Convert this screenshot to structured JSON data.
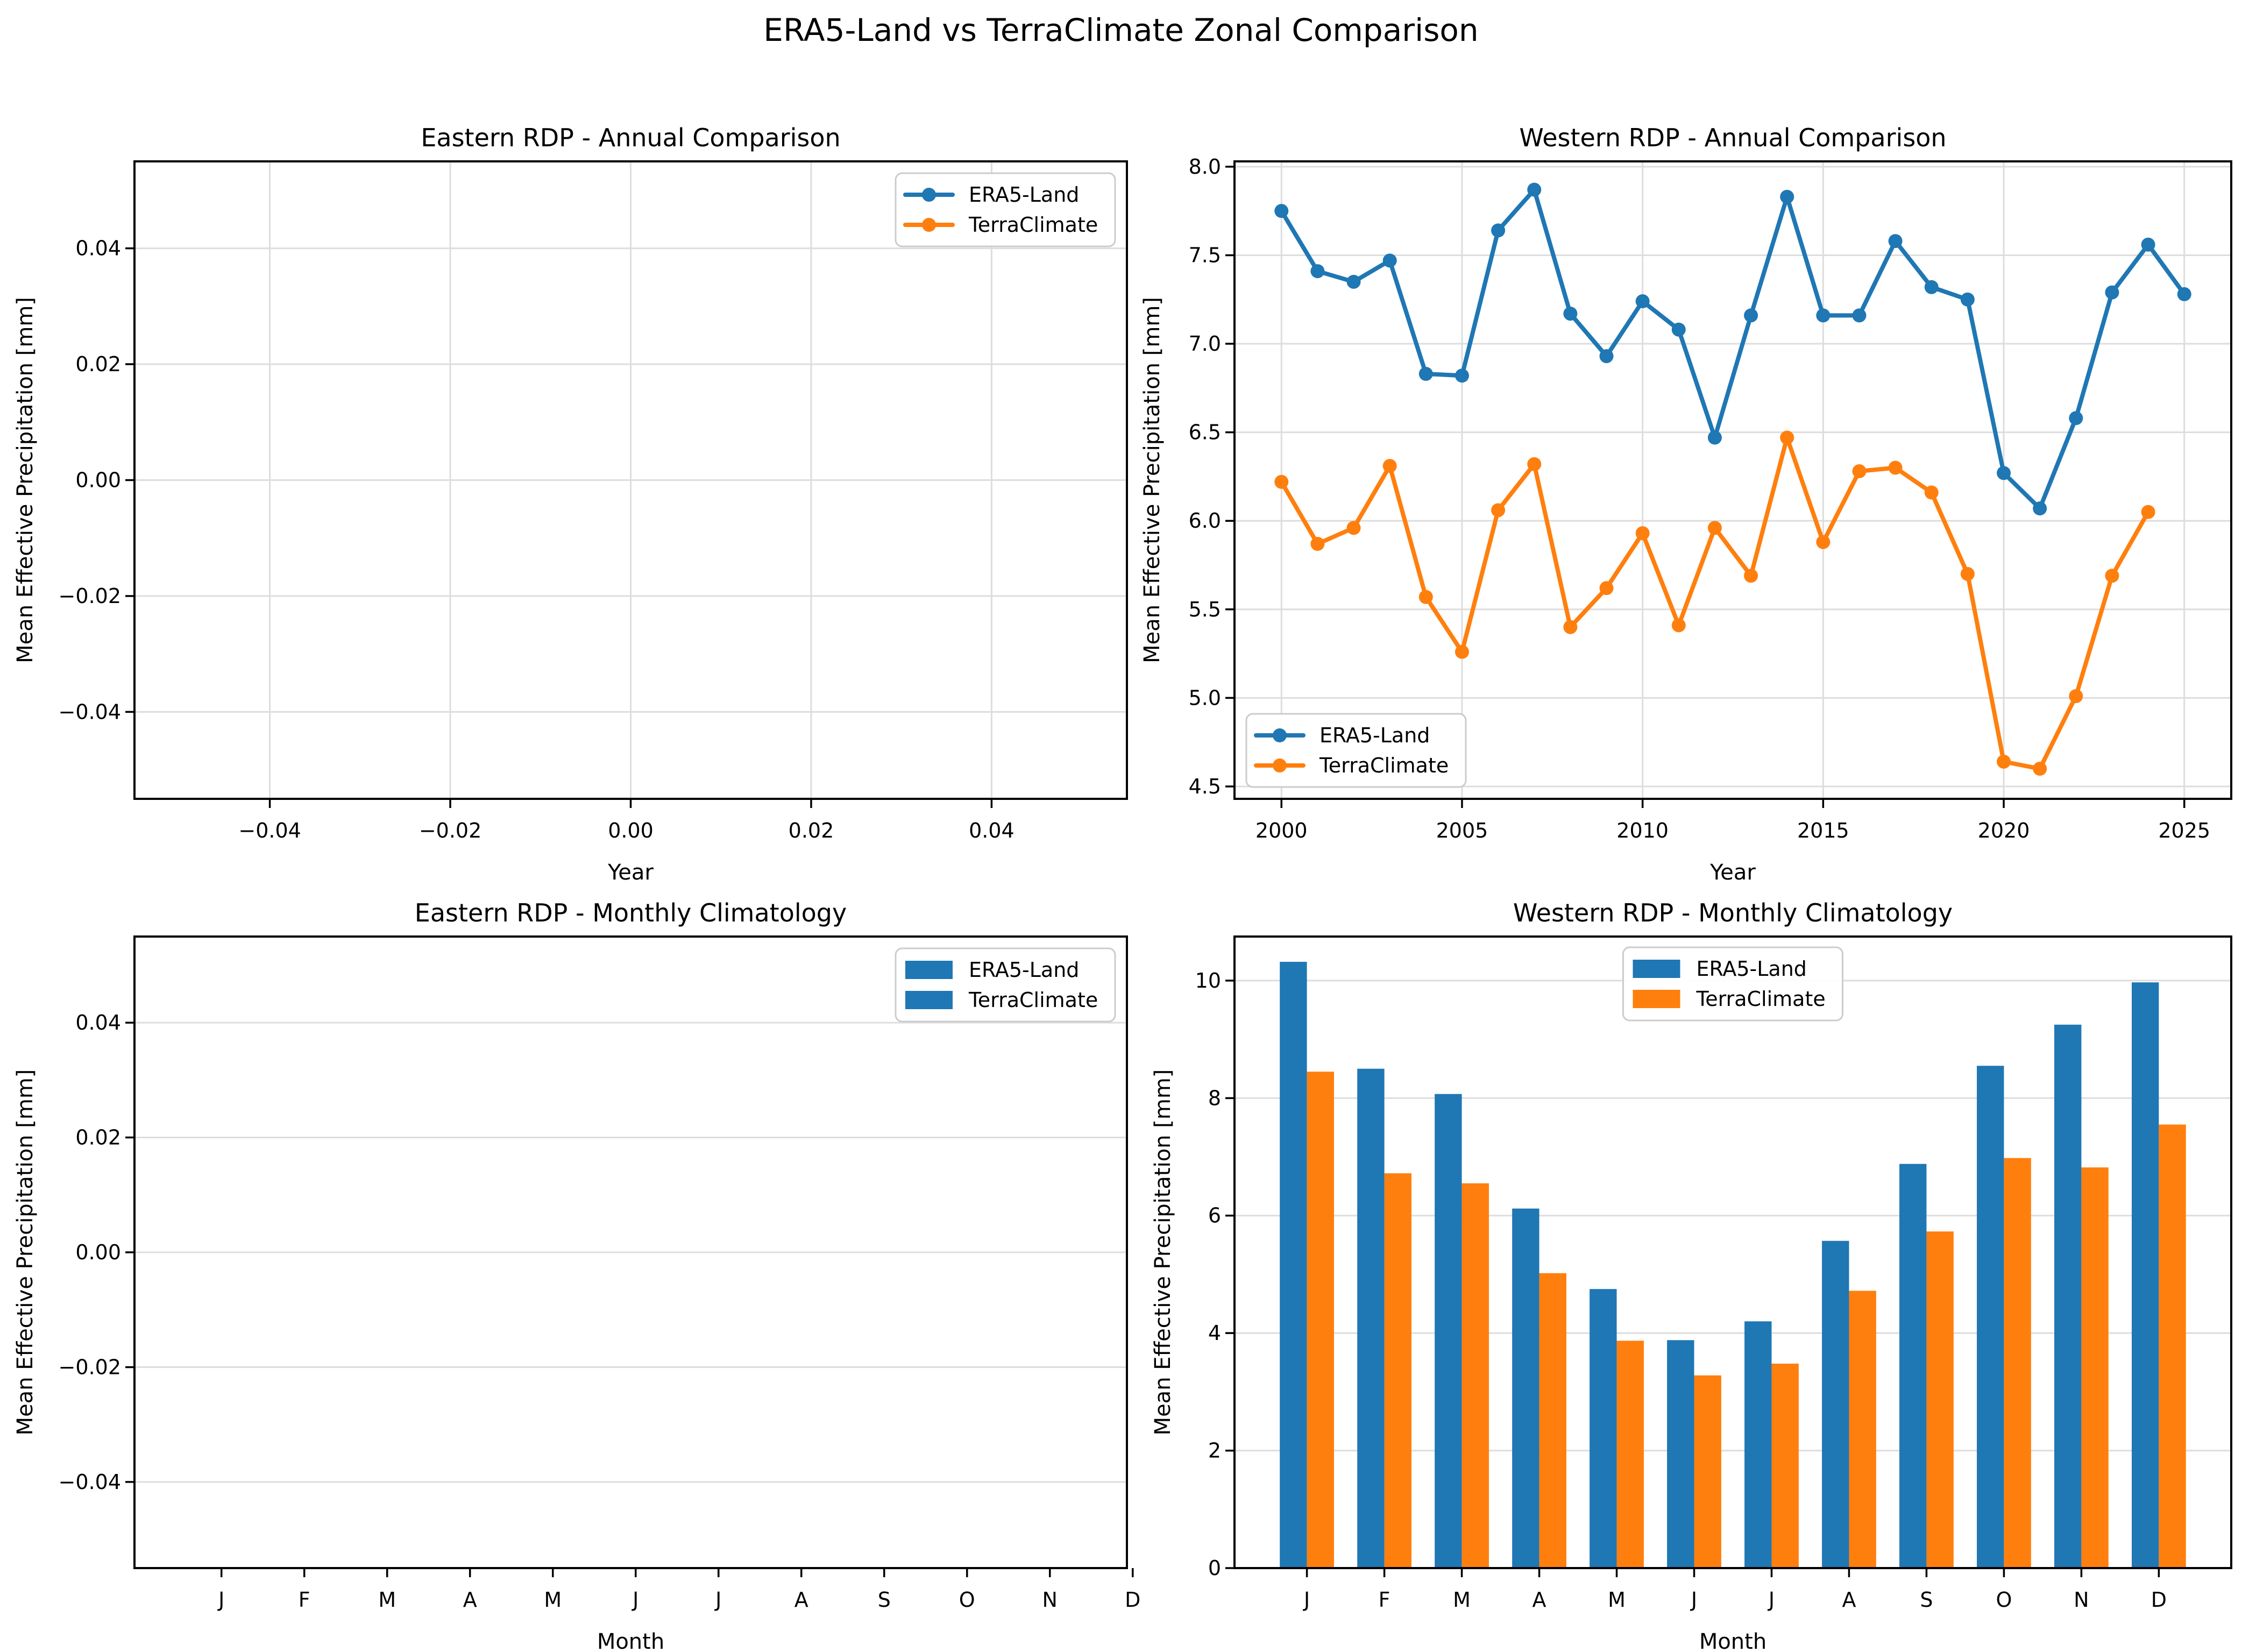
{
  "suptitle": "ERA5-Land vs TerraClimate Zonal Comparison",
  "colors": {
    "era5_land": "#1f77b4",
    "terraclimate": "#ff7f0e",
    "grid": "#dddddd",
    "spine": "#000000",
    "legend_border": "#cccccc"
  },
  "chart_data": [
    {
      "id": "eastern-annual",
      "type": "line",
      "title": "Eastern RDP - Annual Comparison",
      "xlabel": "Year",
      "ylabel": "Mean Effective Precipitation [mm]",
      "xlim": [
        -0.055,
        0.055
      ],
      "ylim": [
        -0.055,
        0.055
      ],
      "xticks": [
        {
          "v": -0.04,
          "label": "−0.04"
        },
        {
          "v": -0.02,
          "label": "−0.02"
        },
        {
          "v": 0.0,
          "label": "0.00"
        },
        {
          "v": 0.02,
          "label": "0.02"
        },
        {
          "v": 0.04,
          "label": "0.04"
        }
      ],
      "yticks": [
        {
          "v": -0.04,
          "label": "−0.04"
        },
        {
          "v": -0.02,
          "label": "−0.02"
        },
        {
          "v": 0.0,
          "label": "0.00"
        },
        {
          "v": 0.02,
          "label": "0.02"
        },
        {
          "v": 0.04,
          "label": "0.04"
        }
      ],
      "grid": {
        "x": true,
        "y": true
      },
      "series": [],
      "legend": {
        "style": "line",
        "loc": "upper-right",
        "entries": [
          {
            "label": "ERA5-Land",
            "color": "#1f77b4"
          },
          {
            "label": "TerraClimate",
            "color": "#ff7f0e"
          }
        ]
      }
    },
    {
      "id": "western-annual",
      "type": "line",
      "title": "Western RDP - Annual Comparison",
      "xlabel": "Year",
      "ylabel": "Mean Effective Precipitation [mm]",
      "xlim": [
        1998.7,
        2026.3
      ],
      "ylim": [
        4.43,
        8.03
      ],
      "xticks": [
        {
          "v": 2000,
          "label": "2000"
        },
        {
          "v": 2005,
          "label": "2005"
        },
        {
          "v": 2010,
          "label": "2010"
        },
        {
          "v": 2015,
          "label": "2015"
        },
        {
          "v": 2020,
          "label": "2020"
        },
        {
          "v": 2025,
          "label": "2025"
        }
      ],
      "yticks": [
        {
          "v": 4.5,
          "label": "4.5"
        },
        {
          "v": 5.0,
          "label": "5.0"
        },
        {
          "v": 5.5,
          "label": "5.5"
        },
        {
          "v": 6.0,
          "label": "6.0"
        },
        {
          "v": 6.5,
          "label": "6.5"
        },
        {
          "v": 7.0,
          "label": "7.0"
        },
        {
          "v": 7.5,
          "label": "7.5"
        },
        {
          "v": 8.0,
          "label": "8.0"
        }
      ],
      "grid": {
        "x": true,
        "y": true
      },
      "series": [
        {
          "name": "ERA5-Land",
          "color": "#1f77b4",
          "x": [
            2000,
            2001,
            2002,
            2003,
            2004,
            2005,
            2006,
            2007,
            2008,
            2009,
            2010,
            2011,
            2012,
            2013,
            2014,
            2015,
            2016,
            2017,
            2018,
            2019,
            2020,
            2021,
            2022,
            2023,
            2024,
            2025
          ],
          "y": [
            7.75,
            7.41,
            7.35,
            7.47,
            6.83,
            6.82,
            7.64,
            7.87,
            7.17,
            6.93,
            7.24,
            7.08,
            6.47,
            7.16,
            7.83,
            7.16,
            7.16,
            7.58,
            7.32,
            7.25,
            6.27,
            6.07,
            6.58,
            7.29,
            7.56,
            7.28
          ]
        },
        {
          "name": "TerraClimate",
          "color": "#ff7f0e",
          "x": [
            2000,
            2001,
            2002,
            2003,
            2004,
            2005,
            2006,
            2007,
            2008,
            2009,
            2010,
            2011,
            2012,
            2013,
            2014,
            2015,
            2016,
            2017,
            2018,
            2019,
            2020,
            2021,
            2022,
            2023,
            2024
          ],
          "y": [
            6.22,
            5.87,
            5.96,
            6.31,
            5.57,
            5.26,
            6.06,
            6.32,
            5.4,
            5.62,
            5.93,
            5.41,
            5.96,
            5.69,
            6.47,
            5.88,
            6.28,
            6.3,
            6.16,
            5.7,
            4.64,
            4.6,
            5.01,
            5.69,
            6.05
          ]
        }
      ],
      "legend": {
        "style": "line",
        "loc": "lower-left",
        "entries": [
          {
            "label": "ERA5-Land",
            "color": "#1f77b4"
          },
          {
            "label": "TerraClimate",
            "color": "#ff7f0e"
          }
        ]
      }
    },
    {
      "id": "eastern-monthly",
      "type": "line",
      "title": "Eastern RDP - Monthly Climatology",
      "xlabel": "Month",
      "ylabel": "Mean Effective Precipitation [mm]",
      "xlim": [
        -1.05,
        10.93
      ],
      "ylim": [
        -0.055,
        0.055
      ],
      "xticks": [
        {
          "v": 0,
          "label": "J"
        },
        {
          "v": 1,
          "label": "F"
        },
        {
          "v": 2,
          "label": "M"
        },
        {
          "v": 3,
          "label": "A"
        },
        {
          "v": 4,
          "label": "M"
        },
        {
          "v": 5,
          "label": "J"
        },
        {
          "v": 6,
          "label": "J"
        },
        {
          "v": 7,
          "label": "A"
        },
        {
          "v": 8,
          "label": "S"
        },
        {
          "v": 9,
          "label": "O"
        },
        {
          "v": 10,
          "label": "N"
        },
        {
          "v": 11,
          "label": "D"
        }
      ],
      "yticks": [
        {
          "v": -0.04,
          "label": "−0.04"
        },
        {
          "v": -0.02,
          "label": "−0.02"
        },
        {
          "v": 0.0,
          "label": "0.00"
        },
        {
          "v": 0.02,
          "label": "0.02"
        },
        {
          "v": 0.04,
          "label": "0.04"
        }
      ],
      "grid": {
        "x": false,
        "y": true
      },
      "series": [],
      "legend": {
        "style": "patch",
        "loc": "upper-right",
        "entries": [
          {
            "label": "ERA5-Land",
            "color": "#1f77b4"
          },
          {
            "label": "TerraClimate",
            "color": "#1f77b4"
          }
        ]
      }
    },
    {
      "id": "western-monthly",
      "type": "bar",
      "title": "Western RDP - Monthly Climatology",
      "xlabel": "Month",
      "ylabel": "Mean Effective Precipitation [mm]",
      "xlim": [
        -0.935,
        11.935
      ],
      "ylim": [
        0,
        10.75
      ],
      "bar_width": 0.35,
      "xticks": [
        {
          "v": 0,
          "label": "J"
        },
        {
          "v": 1,
          "label": "F"
        },
        {
          "v": 2,
          "label": "M"
        },
        {
          "v": 3,
          "label": "A"
        },
        {
          "v": 4,
          "label": "M"
        },
        {
          "v": 5,
          "label": "J"
        },
        {
          "v": 6,
          "label": "J"
        },
        {
          "v": 7,
          "label": "A"
        },
        {
          "v": 8,
          "label": "S"
        },
        {
          "v": 9,
          "label": "O"
        },
        {
          "v": 10,
          "label": "N"
        },
        {
          "v": 11,
          "label": "D"
        }
      ],
      "yticks": [
        {
          "v": 0,
          "label": "0"
        },
        {
          "v": 2,
          "label": "2"
        },
        {
          "v": 4,
          "label": "4"
        },
        {
          "v": 6,
          "label": "6"
        },
        {
          "v": 8,
          "label": "8"
        },
        {
          "v": 10,
          "label": "10"
        }
      ],
      "grid": {
        "x": false,
        "y": true
      },
      "series": [
        {
          "name": "ERA5-Land",
          "color": "#1f77b4",
          "offset": -0.175,
          "values": [
            10.32,
            8.5,
            8.07,
            6.12,
            4.75,
            3.88,
            4.2,
            5.57,
            6.88,
            8.55,
            9.25,
            9.97
          ]
        },
        {
          "name": "TerraClimate",
          "color": "#ff7f0e",
          "offset": 0.175,
          "values": [
            8.45,
            6.72,
            6.55,
            5.02,
            3.87,
            3.28,
            3.48,
            4.72,
            5.73,
            6.98,
            6.82,
            7.55
          ]
        }
      ],
      "legend": {
        "style": "patch",
        "loc": "upper-center",
        "entries": [
          {
            "label": "ERA5-Land",
            "color": "#1f77b4"
          },
          {
            "label": "TerraClimate",
            "color": "#ff7f0e"
          }
        ]
      }
    }
  ]
}
